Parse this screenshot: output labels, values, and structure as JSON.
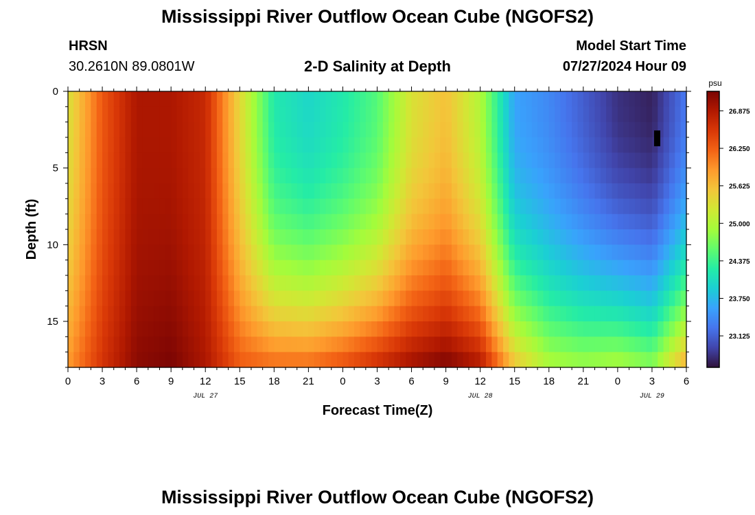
{
  "page": {
    "title_top": "Mississippi River Outflow Ocean Cube (NGOFS2)",
    "title_bottom": "Mississippi River Outflow Ocean Cube (NGOFS2)",
    "station_name": "HRSN",
    "station_coords": "30.2610N  89.0801W",
    "plot_subtitle": "2-D Salinity at Depth",
    "model_start_label": "Model Start Time",
    "model_start_value": "07/27/2024 Hour 09"
  },
  "chart_data": {
    "type": "heatmap",
    "title": "2-D Salinity at Depth",
    "xlabel": "Forecast Time(Z)",
    "ylabel": "Depth (ft)",
    "x_hours_range": [
      0,
      54
    ],
    "x_tick_labels": [
      "0",
      "3",
      "6",
      "9",
      "12",
      "15",
      "18",
      "21",
      "0",
      "3",
      "6",
      "9",
      "12",
      "15",
      "18",
      "21",
      "0",
      "3",
      "6"
    ],
    "day_labels": [
      {
        "hour": 12,
        "text": "JUL 27"
      },
      {
        "hour": 36,
        "text": "JUL 28"
      },
      {
        "hour": 51,
        "text": "JUL 29"
      }
    ],
    "y_range": [
      0,
      18
    ],
    "y_tick_labels": [
      "0",
      "5",
      "10",
      "15"
    ],
    "colorbar": {
      "unit": "psu",
      "min": 22.6,
      "max": 27.2,
      "tick_values": [
        "26.875",
        "26.250",
        "25.625",
        "25.000",
        "24.375",
        "23.750",
        "23.125"
      ],
      "palette": [
        "#30123b",
        "#4145ab",
        "#4675ed",
        "#39a2fc",
        "#1bcfd4",
        "#24eca6",
        "#61fc6c",
        "#a4fc3b",
        "#d1e834",
        "#f3c63a",
        "#fe9b2d",
        "#f36315",
        "#d93807",
        "#b11901",
        "#7a0403"
      ]
    },
    "profile_note": "salinity (psu) at depths 0-18 ft for each forecast hour 0-54",
    "time_profiles": [
      {
        "hour": 0,
        "surface": 25.3,
        "bottom": 25.9
      },
      {
        "hour": 3,
        "surface": 26.3,
        "bottom": 26.6
      },
      {
        "hour": 6,
        "surface": 26.9,
        "bottom": 27.1
      },
      {
        "hour": 9,
        "surface": 26.9,
        "bottom": 27.2
      },
      {
        "hour": 12,
        "surface": 26.7,
        "bottom": 26.9
      },
      {
        "hour": 15,
        "surface": 25.4,
        "bottom": 26.3
      },
      {
        "hour": 18,
        "surface": 24.2,
        "bottom": 26.2
      },
      {
        "hour": 21,
        "surface": 24.0,
        "bottom": 26.2
      },
      {
        "hour": 24,
        "surface": 24.2,
        "bottom": 26.4
      },
      {
        "hour": 27,
        "surface": 24.5,
        "bottom": 26.7
      },
      {
        "hour": 30,
        "surface": 25.3,
        "bottom": 27.0
      },
      {
        "hour": 33,
        "surface": 25.6,
        "bottom": 27.2
      },
      {
        "hour": 36,
        "surface": 25.0,
        "bottom": 26.9
      },
      {
        "hour": 39,
        "surface": 23.6,
        "bottom": 25.6
      },
      {
        "hour": 42,
        "surface": 23.4,
        "bottom": 25.0
      },
      {
        "hour": 45,
        "surface": 23.1,
        "bottom": 24.9
      },
      {
        "hour": 48,
        "surface": 22.8,
        "bottom": 25.0
      },
      {
        "hour": 51,
        "surface": 22.7,
        "bottom": 24.8
      },
      {
        "hour": 54,
        "surface": 23.3,
        "bottom": 25.8
      }
    ]
  }
}
